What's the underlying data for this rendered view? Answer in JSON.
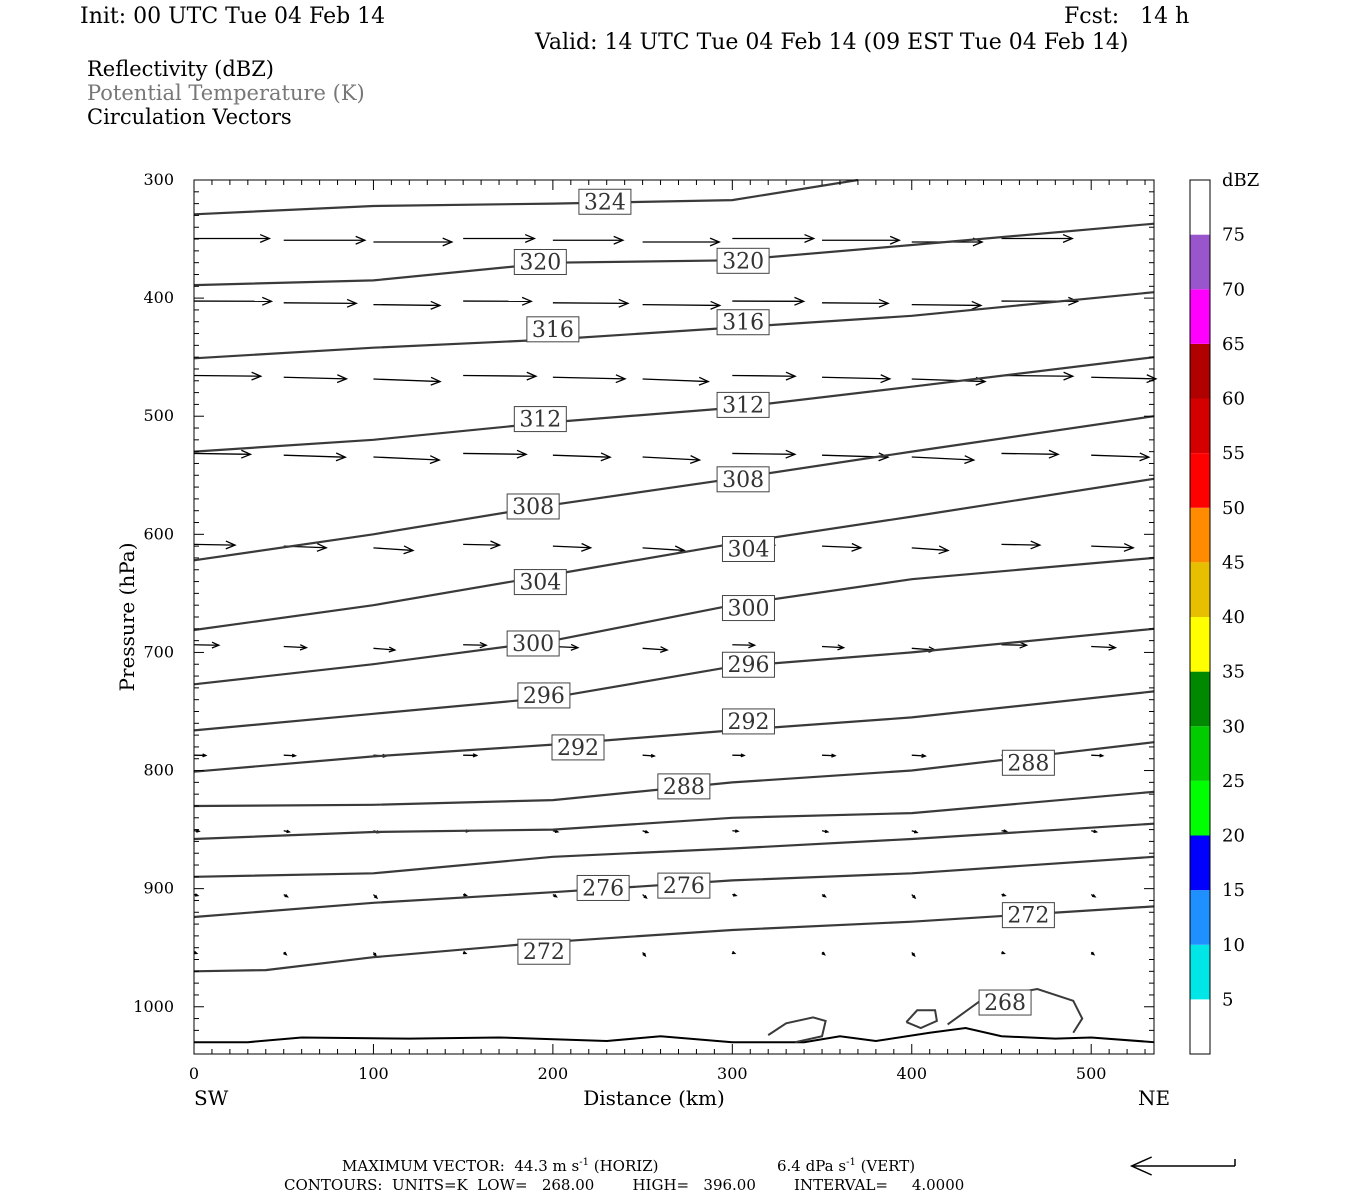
{
  "header": {
    "init": "Init: 00 UTC Tue 04 Feb 14",
    "fcst": "Fcst:   14 h",
    "valid": "Valid: 14 UTC Tue 04 Feb 14 (09 EST Tue 04 Feb 14)"
  },
  "fields": {
    "reflectivity": "Reflectivity (dBZ)",
    "theta": "Potential Temperature (K)",
    "vectors": "Circulation Vectors"
  },
  "footer": {
    "maxvec_prefix": "MAXIMUM VECTOR:  44.3 m s",
    "maxvec_horiz": " (HORIZ)",
    "maxvec_vert_prefix": "6.4 dPa s",
    "maxvec_vert": " (VERT)",
    "exponent": "-1",
    "contours": "CONTOURS:  UNITS=K  LOW=   268.00        HIGH=   396.00        INTERVAL=     4.0000"
  },
  "colors": {
    "contour": "#3a3a3a",
    "dbz": [
      "#00e6e6",
      "#1e90ff",
      "#0000ff",
      "#00ff00",
      "#00cc00",
      "#008800",
      "#ffff00",
      "#e6c000",
      "#ff8c00",
      "#ff0000",
      "#d40000",
      "#b00000",
      "#ff00ff",
      "#9955cc"
    ]
  },
  "chart_data": {
    "type": "cross-section",
    "xlabel": "Distance (km)",
    "ylabel": "Pressure (hPa)",
    "xlim": [
      0,
      535
    ],
    "ylim": [
      1040,
      300
    ],
    "y_scale": "linear (pressure increasing downward)",
    "xticks": [
      0,
      100,
      200,
      300,
      400,
      500
    ],
    "yticks": [
      300,
      400,
      500,
      600,
      700,
      800,
      900,
      1000
    ],
    "endpoints": {
      "left": "SW",
      "right": "NE"
    },
    "colorbar": {
      "title": "dBZ",
      "levels": [
        5,
        10,
        15,
        20,
        25,
        30,
        35,
        40,
        45,
        50,
        55,
        60,
        65,
        70,
        75
      ]
    },
    "isentropes": [
      {
        "theta": 324,
        "p": [
          [
            0,
            329
          ],
          [
            100,
            322
          ],
          [
            200,
            320
          ],
          [
            300,
            317
          ],
          [
            370,
            300
          ]
        ]
      },
      {
        "theta": 320,
        "p": [
          [
            0,
            389
          ],
          [
            100,
            385
          ],
          [
            200,
            370
          ],
          [
            300,
            368
          ],
          [
            400,
            355
          ],
          [
            535,
            337
          ]
        ]
      },
      {
        "theta": 316,
        "p": [
          [
            0,
            451
          ],
          [
            100,
            442
          ],
          [
            200,
            435
          ],
          [
            300,
            425
          ],
          [
            400,
            415
          ],
          [
            535,
            395
          ]
        ]
      },
      {
        "theta": 312,
        "p": [
          [
            0,
            530
          ],
          [
            100,
            520
          ],
          [
            200,
            505
          ],
          [
            300,
            493
          ],
          [
            400,
            475
          ],
          [
            535,
            450
          ]
        ]
      },
      {
        "theta": 308,
        "p": [
          [
            0,
            622
          ],
          [
            100,
            600
          ],
          [
            200,
            575
          ],
          [
            300,
            553
          ],
          [
            400,
            530
          ],
          [
            535,
            500
          ]
        ]
      },
      {
        "theta": 304,
        "p": [
          [
            0,
            681
          ],
          [
            100,
            660
          ],
          [
            200,
            634
          ],
          [
            300,
            608
          ],
          [
            400,
            585
          ],
          [
            535,
            553
          ]
        ]
      },
      {
        "theta": 300,
        "p": [
          [
            0,
            727
          ],
          [
            100,
            710
          ],
          [
            200,
            690
          ],
          [
            300,
            660
          ],
          [
            400,
            638
          ],
          [
            535,
            620
          ]
        ]
      },
      {
        "theta": 296,
        "p": [
          [
            0,
            766
          ],
          [
            100,
            752
          ],
          [
            200,
            738
          ],
          [
            300,
            712
          ],
          [
            400,
            700
          ],
          [
            535,
            680
          ]
        ]
      },
      {
        "theta": 292,
        "p": [
          [
            0,
            801
          ],
          [
            100,
            788
          ],
          [
            200,
            778
          ],
          [
            300,
            766
          ],
          [
            400,
            755
          ],
          [
            535,
            733
          ]
        ]
      },
      {
        "theta": 288,
        "p": [
          [
            0,
            830
          ],
          [
            100,
            829
          ],
          [
            200,
            825
          ],
          [
            300,
            810
          ],
          [
            400,
            800
          ],
          [
            535,
            776
          ]
        ]
      },
      {
        "theta": 284,
        "p": [
          [
            0,
            858
          ],
          [
            100,
            852
          ],
          [
            200,
            850
          ],
          [
            300,
            840
          ],
          [
            400,
            836
          ],
          [
            535,
            818
          ]
        ]
      },
      {
        "theta": 280,
        "p": [
          [
            0,
            890
          ],
          [
            100,
            887
          ],
          [
            200,
            873
          ],
          [
            300,
            866
          ],
          [
            400,
            858
          ],
          [
            535,
            845
          ]
        ]
      },
      {
        "theta": 276,
        "p": [
          [
            0,
            924
          ],
          [
            100,
            912
          ],
          [
            200,
            903
          ],
          [
            300,
            893
          ],
          [
            400,
            887
          ],
          [
            535,
            873
          ]
        ]
      },
      {
        "theta": 272,
        "p": [
          [
            0,
            970
          ],
          [
            40,
            969
          ],
          [
            100,
            958
          ],
          [
            200,
            945
          ],
          [
            300,
            935
          ],
          [
            400,
            928
          ],
          [
            535,
            915
          ]
        ]
      }
    ],
    "contour_labels": [
      {
        "text": "324",
        "x": 229,
        "p": 318
      },
      {
        "text": "320",
        "x": 193,
        "p": 369
      },
      {
        "text": "320",
        "x": 306,
        "p": 368
      },
      {
        "text": "316",
        "x": 200,
        "p": 426
      },
      {
        "text": "316",
        "x": 306,
        "p": 420
      },
      {
        "text": "312",
        "x": 193,
        "p": 502
      },
      {
        "text": "312",
        "x": 306,
        "p": 490
      },
      {
        "text": "308",
        "x": 189,
        "p": 576
      },
      {
        "text": "308",
        "x": 306,
        "p": 553
      },
      {
        "text": "304",
        "x": 193,
        "p": 640
      },
      {
        "text": "304",
        "x": 309,
        "p": 612
      },
      {
        "text": "300",
        "x": 189,
        "p": 692
      },
      {
        "text": "300",
        "x": 309,
        "p": 662
      },
      {
        "text": "296",
        "x": 195,
        "p": 736
      },
      {
        "text": "296",
        "x": 309,
        "p": 710
      },
      {
        "text": "292",
        "x": 214,
        "p": 780
      },
      {
        "text": "292",
        "x": 309,
        "p": 758
      },
      {
        "text": "288",
        "x": 273,
        "p": 813
      },
      {
        "text": "288",
        "x": 465,
        "p": 793
      },
      {
        "text": "276",
        "x": 228,
        "p": 899
      },
      {
        "text": "276",
        "x": 273,
        "p": 897
      },
      {
        "text": "272",
        "x": 195,
        "p": 953
      },
      {
        "text": "272",
        "x": 465,
        "p": 922
      },
      {
        "text": "268",
        "x": 452,
        "p": 996
      }
    ],
    "vector_units": {
      "horizontal": "m s-1",
      "vertical": "dPa s-1",
      "max_horizontal": 44.3,
      "max_vertical": 6.4,
      "reference_length_km": 52
    }
  }
}
